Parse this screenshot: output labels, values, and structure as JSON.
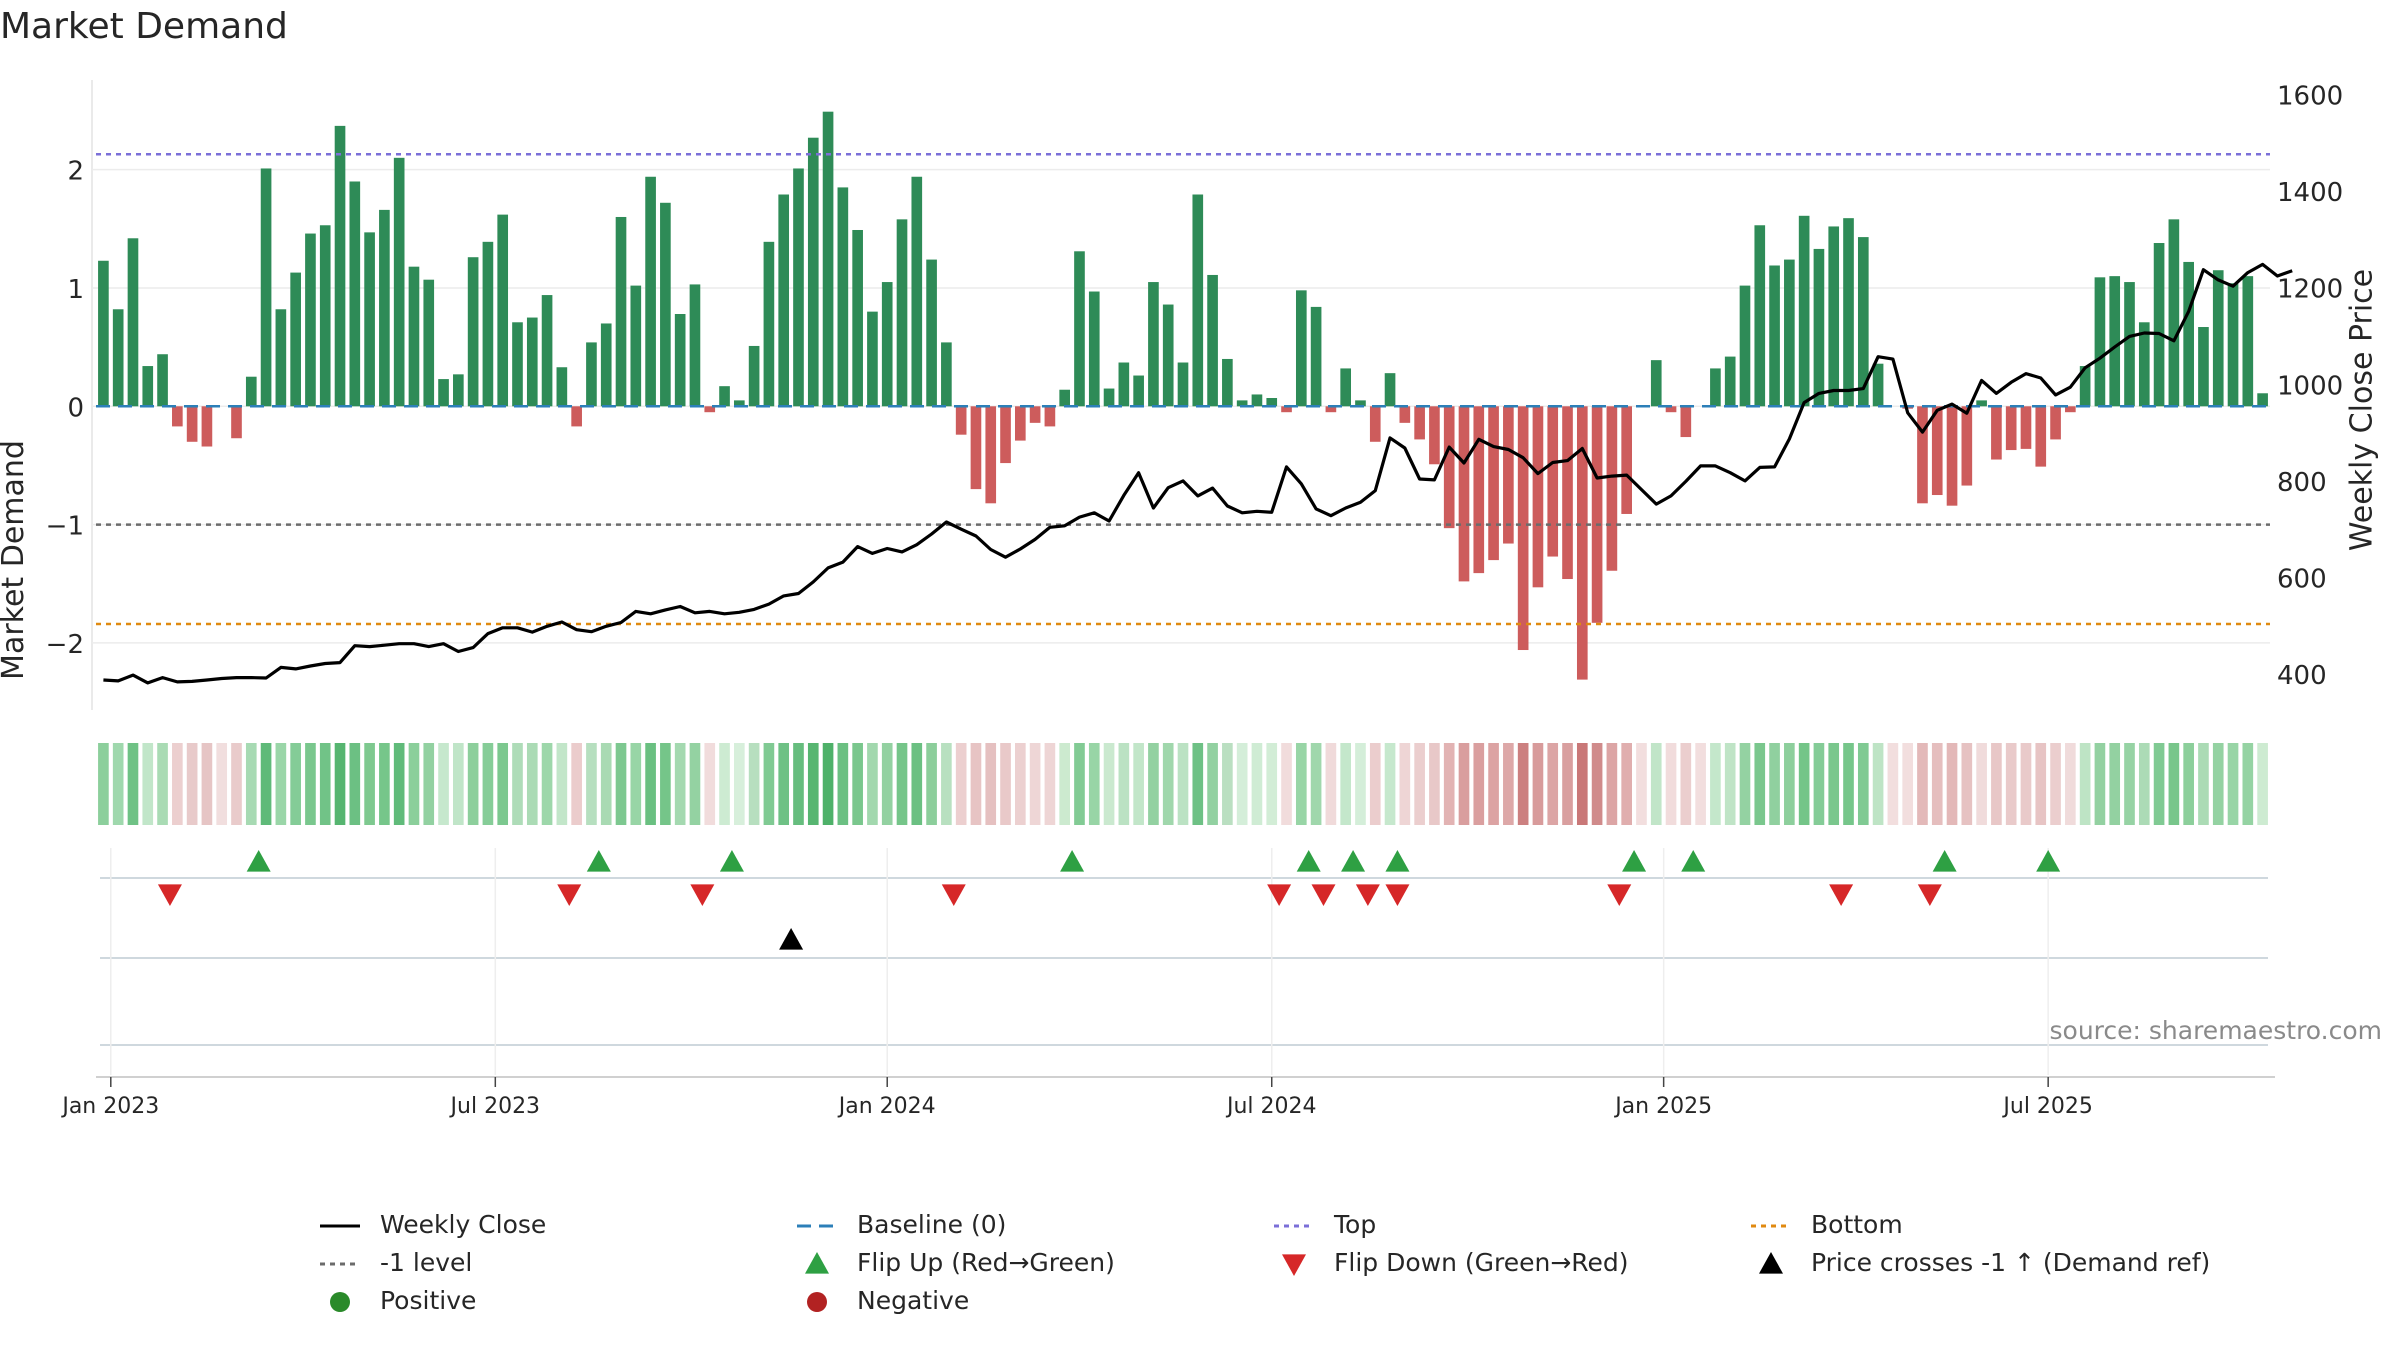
{
  "title": "Market Demand",
  "chart_data": {
    "type": "bar+line",
    "left_axis": {
      "label": "Market Demand",
      "ylim": [
        -2.55,
        2.8
      ],
      "ticks": [
        2,
        1,
        0,
        -1,
        -2
      ],
      "tick_labels": [
        "2",
        "1",
        "0",
        "−1",
        "−2"
      ]
    },
    "right_axis": {
      "label": "Weekly Close Price",
      "ylim": [
        330,
        1640
      ],
      "ticks": [
        1600,
        1400,
        1200,
        1000,
        800,
        600,
        400
      ],
      "tick_labels": [
        "1600",
        "1400",
        "1200",
        "1000",
        "800",
        "600",
        "400"
      ]
    },
    "x_axis": {
      "start_week_offset": 0,
      "ticks": [
        {
          "label": "Jan 2023",
          "week": 1
        },
        {
          "label": "Jul 2023",
          "week": 27
        },
        {
          "label": "Jan 2024",
          "week": 53.5
        },
        {
          "label": "Jul 2024",
          "week": 79.5
        },
        {
          "label": "Jan 2025",
          "week": 106
        },
        {
          "label": "Jul 2025",
          "week": 132
        }
      ]
    },
    "reference_lines": [
      {
        "name": "Top",
        "value": 2.13,
        "color": "#7b6fd8"
      },
      {
        "name": "-1 level",
        "value": -1.0,
        "color": "#6b6b6b"
      },
      {
        "name": "Bottom",
        "value": -1.84,
        "color": "#e08a10"
      },
      {
        "name": "Baseline (0)",
        "value": 0,
        "color": "#2c7fb8"
      }
    ],
    "demand": [
      1.23,
      0.82,
      1.42,
      0.34,
      0.44,
      -0.17,
      -0.3,
      -0.34,
      0.0,
      -0.27,
      0.25,
      2.01,
      0.82,
      1.13,
      1.46,
      1.53,
      2.37,
      1.9,
      1.47,
      1.66,
      2.1,
      1.18,
      1.07,
      0.23,
      0.27,
      1.26,
      1.39,
      1.62,
      0.71,
      0.75,
      0.94,
      0.33,
      -0.17,
      0.54,
      0.7,
      1.6,
      1.02,
      1.94,
      1.72,
      0.78,
      1.03,
      -0.05,
      0.17,
      0.05,
      0.51,
      1.39,
      1.79,
      2.01,
      2.27,
      2.49,
      1.85,
      1.49,
      0.8,
      1.05,
      1.58,
      1.94,
      1.24,
      0.54,
      -0.24,
      -0.7,
      -0.82,
      -0.48,
      -0.29,
      -0.14,
      -0.17,
      0.14,
      1.31,
      0.97,
      0.15,
      0.37,
      0.26,
      1.05,
      0.86,
      0.37,
      1.79,
      1.11,
      0.4,
      0.05,
      0.1,
      0.07,
      -0.05,
      0.98,
      0.84,
      -0.05,
      0.32,
      0.05,
      -0.3,
      0.28,
      -0.14,
      -0.28,
      -0.49,
      -1.03,
      -1.48,
      -1.41,
      -1.3,
      -1.16,
      -2.06,
      -1.53,
      -1.27,
      -1.46,
      -2.31,
      -1.83,
      -1.39,
      -0.91,
      0.0,
      0.39,
      -0.05,
      -0.26,
      0.0,
      0.32,
      0.42,
      1.02,
      1.53,
      1.19,
      1.24,
      1.61,
      1.33,
      1.52,
      1.59,
      1.43,
      0.36,
      0.0,
      -0.02,
      -0.82,
      -0.75,
      -0.84,
      -0.67,
      0.05,
      -0.45,
      -0.37,
      -0.36,
      -0.51,
      -0.28,
      -0.05,
      0.34,
      1.09,
      1.1,
      1.05,
      0.71,
      1.38,
      1.58,
      1.22,
      0.67,
      1.15,
      1.04,
      1.1,
      0.11
    ],
    "close": [
      388,
      386,
      398,
      382,
      393,
      384,
      385,
      388,
      391,
      393,
      393,
      392,
      414,
      411,
      417,
      422,
      424,
      459,
      457,
      460,
      463,
      463,
      457,
      463,
      447,
      455,
      484,
      496,
      496,
      487,
      499,
      508,
      492,
      488,
      499,
      507,
      530,
      525,
      533,
      540,
      527,
      530,
      525,
      528,
      534,
      545,
      562,
      567,
      591,
      620,
      632,
      664,
      650,
      660,
      653,
      668,
      690,
      715,
      700,
      686,
      658,
      642,
      659,
      679,
      704,
      707,
      725,
      734,
      717,
      770,
      817,
      744,
      786,
      800,
      769,
      785,
      748,
      734,
      737,
      735,
      829,
      794,
      742,
      728,
      744,
      756,
      780,
      889,
      868,
      804,
      802,
      870,
      837,
      886,
      871,
      865,
      848,
      815,
      838,
      842,
      867,
      806,
      810,
      812,
      782,
      752,
      769,
      799,
      831,
      831,
      817,
      800,
      828,
      829,
      887,
      962,
      981,
      987,
      987,
      991,
      1057,
      1052,
      941,
      901,
      946,
      959,
      940,
      1008,
      981,
      1004,
      1022,
      1013,
      978,
      994,
      1034,
      1054,
      1077,
      1099,
      1106,
      1105,
      1090,
      1151,
      1237,
      1216,
      1203,
      1231,
      1248,
      1224,
      1235
    ],
    "heat_colors": [
      "#8ccf9c",
      "#9fd8ad",
      "#6fc285",
      "#c1e6c9",
      "#a9dbb4",
      "#eccfcf",
      "#e8caca",
      "#e6c5c5",
      "#f1dede",
      "#e9cbcb",
      "#a7dab3",
      "#5fba79",
      "#9ad6a8",
      "#84cc97",
      "#79c78d",
      "#71c387",
      "#56b570",
      "#6cc083",
      "#7ec98f",
      "#76c68a",
      "#60bb7a",
      "#8bcf9b",
      "#92d1a1",
      "#c6e8cd",
      "#c0e5c8",
      "#8dcf9c",
      "#86cd98",
      "#7cc88f",
      "#aedcb8",
      "#abdbb5",
      "#9dd7aa",
      "#c2e6c9",
      "#ebcccc",
      "#b6dfbf",
      "#a9dab3",
      "#7dc890",
      "#98d5a6",
      "#6ac081",
      "#75c589",
      "#a4d9b0",
      "#94d2a2",
      "#f1dcdc",
      "#cdebd2",
      "#d7efdb",
      "#b7dfbf",
      "#80ca93",
      "#6ec185",
      "#66bd7e",
      "#57b671",
      "#4eb169",
      "#6bc082",
      "#7ac78d",
      "#a2d8ae",
      "#93d1a1",
      "#75c589",
      "#6bc082",
      "#8cce9b",
      "#b8e0c0",
      "#eccfcf",
      "#e7c4c4",
      "#e5c0c0",
      "#e9c9c9",
      "#ecd0d0",
      "#eed6d6",
      "#eed5d5",
      "#cceacf",
      "#82cb94",
      "#98d5a6",
      "#cae9cf",
      "#bbe2c3",
      "#c2e6c9",
      "#93d1a1",
      "#a0d7ac",
      "#bbe2c3",
      "#6ec185",
      "#92d1a1",
      "#badfc1",
      "#d4eed9",
      "#cfecd4",
      "#d2edd6",
      "#f1dcdc",
      "#98d5a6",
      "#a0d7ac",
      "#f0dada",
      "#c4e7cb",
      "#d4eed9",
      "#ebcdcd",
      "#c6e8cd",
      "#eed5d5",
      "#ebcece",
      "#e8c8c8",
      "#e2b3b3",
      "#d99e9e",
      "#da9f9f",
      "#dca3a3",
      "#dda8a8",
      "#cc8080",
      "#d89b9b",
      "#dca5a5",
      "#d99f9f",
      "#c97878",
      "#d08b8b",
      "#dca5a5",
      "#e0aeae",
      "#f2dede",
      "#c1e5c8",
      "#f1dcdc",
      "#ebcece",
      "#f2dede",
      "#c4e7cb",
      "#bfe4c6",
      "#94d2a2",
      "#7ac78d",
      "#90d09f",
      "#8dcf9c",
      "#74c588",
      "#84cc97",
      "#7ac78d",
      "#76c68a",
      "#80ca93",
      "#bee4c5",
      "#f2dede",
      "#f2dede",
      "#e3b9b9",
      "#e5bebe",
      "#e3b8b8",
      "#e6c2c2",
      "#f0dbdb",
      "#e8c7c7",
      "#e9caca",
      "#e9caca",
      "#e7c4c4",
      "#ebcece",
      "#f0dbdb",
      "#bee4c5",
      "#93d1a1",
      "#93d1a1",
      "#96d3a4",
      "#acdbb6",
      "#80ca93",
      "#78c68b",
      "#8ccf9b",
      "#abdbb5",
      "#94d2a2",
      "#98d5a6",
      "#95d3a3",
      "#cdebd1"
    ],
    "flip_up_weeks": [
      11,
      34,
      43,
      66,
      82,
      85,
      88,
      104,
      108,
      125,
      132
    ],
    "flip_down_weeks": [
      5,
      32,
      41,
      58,
      80,
      83,
      86,
      88,
      103,
      118,
      124
    ],
    "price_cross_weeks": [
      47
    ],
    "legend": [
      {
        "label": "Weekly Close",
        "kind": "line",
        "color": "#000000"
      },
      {
        "label": "Baseline (0)",
        "kind": "dash",
        "color": "#2c7fb8"
      },
      {
        "label": "Top",
        "kind": "dot",
        "color": "#7b6fd8"
      },
      {
        "label": "Bottom",
        "kind": "dot",
        "color": "#e08a10"
      },
      {
        "label": "-1 level",
        "kind": "dot",
        "color": "#6b6b6b"
      },
      {
        "label": "Flip Up (Red→Green)",
        "kind": "tri-up",
        "color": "#2ea043"
      },
      {
        "label": "Flip Down (Green→Red)",
        "kind": "tri-down",
        "color": "#d62728"
      },
      {
        "label": "Price crosses -1 ↑ (Demand ref)",
        "kind": "tri-up",
        "color": "#000000"
      },
      {
        "label": "Positive",
        "kind": "circle",
        "color": "#2a8a2a"
      },
      {
        "label": "Negative",
        "kind": "circle",
        "color": "#b22222"
      }
    ],
    "colors": {
      "positive_bar": "#2e8b57",
      "negative_bar": "#cd5c5c"
    }
  },
  "source": "source: sharemaestro.com"
}
